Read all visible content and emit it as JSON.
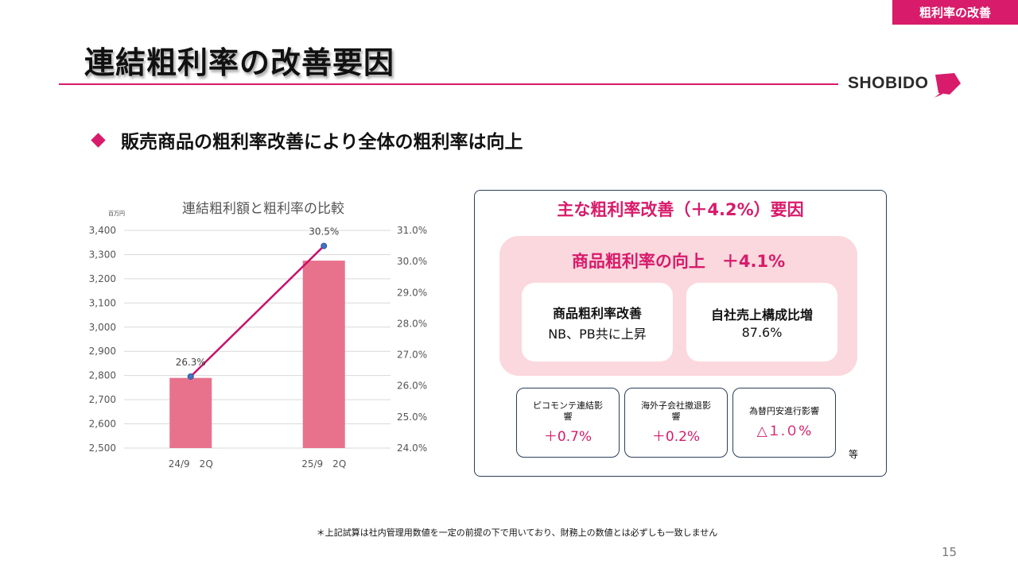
{
  "section_tag": "粗利率の改善",
  "title": "連結粗利率の改善要因",
  "logo_text": "SHOBIDO",
  "subtitle": "販売商品の粗利率改善により全体の粗利率は向上",
  "colors": {
    "accent": "#d81b6a",
    "bar": "#e8728c",
    "line": "#c8106a",
    "marker": "#4472c4",
    "panel": "#fbd8de",
    "border": "#2c3e5a"
  },
  "chart_data": {
    "type": "bar",
    "title": "連結粗利額と粗利率の比較",
    "unit_label": "百万円",
    "categories": [
      "24/9　2Q",
      "25/9　2Q"
    ],
    "series": [
      {
        "type": "bar",
        "values": [
          2790,
          3275
        ]
      },
      {
        "type": "line",
        "axis": "right",
        "values": [
          26.3,
          30.5
        ],
        "labels": [
          "26.3%",
          "30.5%"
        ]
      }
    ],
    "ylim": [
      2500,
      3400
    ],
    "yticks": [
      3400,
      3300,
      3200,
      3100,
      3000,
      2900,
      2800,
      2700,
      2600,
      2500
    ],
    "ytick_labels": [
      "3,400",
      "3,300",
      "3,200",
      "3,100",
      "3,000",
      "2,900",
      "2,800",
      "2,700",
      "2,600",
      "2,500"
    ],
    "y2lim": [
      24.0,
      31.0
    ],
    "y2ticks": [
      31.0,
      30.0,
      29.0,
      28.0,
      27.0,
      26.0,
      25.0,
      24.0
    ],
    "y2tick_labels": [
      "31.0%",
      "30.0%",
      "29.0%",
      "28.0%",
      "27.0%",
      "26.0%",
      "25.0%",
      "24.0%"
    ],
    "grid": true
  },
  "factors": {
    "title": "主な粗利率改善（＋4.2%）要因",
    "main_title": "商品粗利率の向上　＋4.1%",
    "cards": [
      {
        "head": "商品粗利率改善",
        "body": "NB、PB共に上昇"
      },
      {
        "head": "自社売上構成比増",
        "body": "87.6%"
      }
    ],
    "small_cards": [
      {
        "label": "ピコモンテ連結影響",
        "value": "＋0.7%"
      },
      {
        "label": "海外子会社撤退影響",
        "value": "＋0.2%"
      },
      {
        "label": "為替円安進行影響",
        "value": "△１.０%"
      }
    ],
    "etc": "等"
  },
  "footnote": "＊上記試算は社内管理用数値を一定の前提の下で用いており、財務上の数値とは必ずしも一致しません",
  "page_number": "15"
}
